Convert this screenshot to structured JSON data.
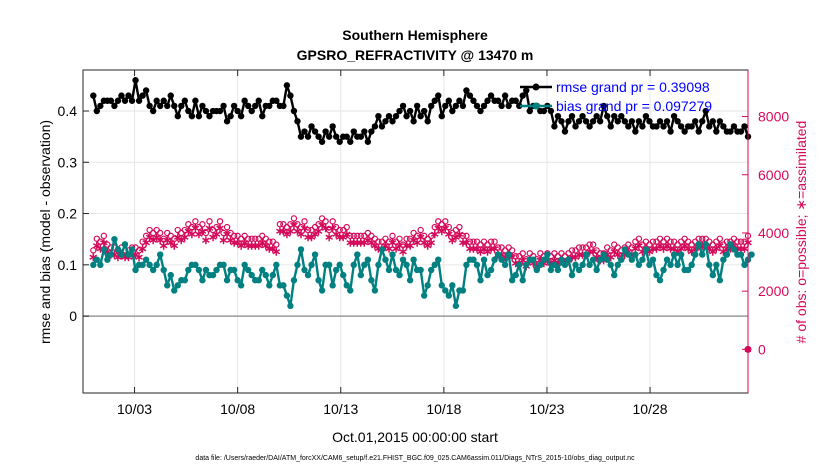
{
  "chart_data": {
    "type": "line",
    "title": "Southern Hemisphere",
    "subtitle": "GPSRO_REFRACTIVITY @ 13470 m",
    "xlabel": "Oct.01,2015 00:00:00 start",
    "ylabel": "rmse and bias (model - observation)",
    "ylabel_right": "# of obs: o=possible; ∗=assimilated",
    "footnote": "data file: /Users/raeder/DAI/ATM_forcXX/CAM6_setup/f.e21.FHIST_BGC.f09_025.CAM6assim.011/Diags_NTrS_2015-10/obs_diag_output.nc",
    "xlim": [
      0.5,
      32.75
    ],
    "ylim": [
      -0.15,
      0.48
    ],
    "ylim_right": [
      -1500,
      9600
    ],
    "x_ticks": [
      3,
      8,
      13,
      18,
      23,
      28
    ],
    "x_tick_labels": [
      "10/03",
      "10/08",
      "10/13",
      "10/18",
      "10/23",
      "10/28"
    ],
    "y_ticks": [
      0,
      0.1,
      0.2,
      0.3,
      0.4
    ],
    "y_tick_labels": [
      "0",
      "0.1",
      "0.2",
      "0.3",
      "0.4"
    ],
    "y_ticks_right": [
      0,
      2000,
      4000,
      6000,
      8000
    ],
    "y_tick_labels_right": [
      "0",
      "2000",
      "4000",
      "6000",
      "8000"
    ],
    "grid": true,
    "legend": [
      "rmse grand pr = 0.39098",
      "bias grand pr = 0.097279"
    ],
    "colors": {
      "rmse": "#000000",
      "bias": "#008080",
      "obs": "#d40a5a",
      "zero": "#9a9a9a"
    },
    "series": [
      {
        "name": "rmse",
        "values": [
          0.43,
          0.4,
          0.41,
          0.42,
          0.42,
          0.42,
          0.41,
          0.42,
          0.43,
          0.42,
          0.43,
          0.42,
          0.46,
          0.42,
          0.43,
          0.44,
          0.41,
          0.4,
          0.42,
          0.41,
          0.42,
          0.41,
          0.43,
          0.41,
          0.39,
          0.41,
          0.42,
          0.4,
          0.39,
          0.42,
          0.39,
          0.41,
          0.4,
          0.39,
          0.4,
          0.4,
          0.4,
          0.41,
          0.38,
          0.39,
          0.41,
          0.4,
          0.39,
          0.42,
          0.41,
          0.4,
          0.41,
          0.42,
          0.39,
          0.41,
          0.41,
          0.42,
          0.42,
          0.41,
          0.41,
          0.45,
          0.43,
          0.4,
          0.38,
          0.35,
          0.36,
          0.35,
          0.37,
          0.36,
          0.35,
          0.34,
          0.36,
          0.35,
          0.37,
          0.35,
          0.34,
          0.35,
          0.35,
          0.34,
          0.36,
          0.35,
          0.35,
          0.36,
          0.34,
          0.36,
          0.37,
          0.39,
          0.37,
          0.38,
          0.39,
          0.38,
          0.39,
          0.4,
          0.41,
          0.39,
          0.4,
          0.38,
          0.41,
          0.39,
          0.4,
          0.38,
          0.41,
          0.42,
          0.43,
          0.39,
          0.41,
          0.42,
          0.4,
          0.41,
          0.42,
          0.41,
          0.44,
          0.43,
          0.42,
          0.41,
          0.4,
          0.41,
          0.42,
          0.43,
          0.42,
          0.42,
          0.41,
          0.43,
          0.41,
          0.42,
          0.42,
          0.41,
          0.43,
          0.44,
          0.4,
          0.41,
          0.41,
          0.4,
          0.4,
          0.41,
          0.4,
          0.37,
          0.39,
          0.38,
          0.36,
          0.38,
          0.39,
          0.37,
          0.38,
          0.39,
          0.38,
          0.37,
          0.38,
          0.39,
          0.38,
          0.41,
          0.39,
          0.37,
          0.39,
          0.38,
          0.39,
          0.38,
          0.37,
          0.38,
          0.36,
          0.38,
          0.37,
          0.39,
          0.38,
          0.37,
          0.37,
          0.38,
          0.37,
          0.38,
          0.36,
          0.39,
          0.38,
          0.37,
          0.36,
          0.37,
          0.37,
          0.38,
          0.36,
          0.38,
          0.4,
          0.37,
          0.38,
          0.36,
          0.38,
          0.37,
          0.36,
          0.36,
          0.37,
          0.36,
          0.36,
          0.37,
          0.35
        ]
      },
      {
        "name": "bias",
        "values": [
          0.1,
          0.11,
          0.1,
          0.13,
          0.11,
          0.12,
          0.15,
          0.13,
          0.12,
          0.14,
          0.12,
          0.13,
          0.09,
          0.1,
          0.1,
          0.11,
          0.1,
          0.09,
          0.1,
          0.12,
          0.09,
          0.06,
          0.08,
          0.05,
          0.06,
          0.07,
          0.07,
          0.09,
          0.1,
          0.1,
          0.09,
          0.07,
          0.09,
          0.08,
          0.08,
          0.09,
          0.1,
          0.1,
          0.07,
          0.09,
          0.09,
          0.07,
          0.06,
          0.1,
          0.09,
          0.08,
          0.07,
          0.07,
          0.09,
          0.08,
          0.06,
          0.08,
          0.1,
          0.06,
          0.06,
          0.04,
          0.02,
          0.07,
          0.1,
          0.13,
          0.09,
          0.08,
          0.1,
          0.12,
          0.07,
          0.05,
          0.1,
          0.1,
          0.06,
          0.09,
          0.1,
          0.08,
          0.06,
          0.05,
          0.1,
          0.12,
          0.08,
          0.1,
          0.11,
          0.07,
          0.05,
          0.1,
          0.13,
          0.11,
          0.09,
          0.12,
          0.09,
          0.08,
          0.11,
          0.1,
          0.07,
          0.11,
          0.09,
          0.09,
          0.04,
          0.06,
          0.09,
          0.1,
          0.11,
          0.06,
          0.05,
          0.04,
          0.06,
          0.02,
          0.05,
          0.05,
          0.1,
          0.11,
          0.11,
          0.1,
          0.07,
          0.11,
          0.08,
          0.09,
          0.11,
          0.12,
          0.11,
          0.1,
          0.12,
          0.07,
          0.08,
          0.1,
          0.07,
          0.1,
          0.11,
          0.11,
          0.09,
          0.1,
          0.11,
          0.12,
          0.09,
          0.1,
          0.09,
          0.11,
          0.1,
          0.11,
          0.08,
          0.1,
          0.09,
          0.1,
          0.12,
          0.1,
          0.11,
          0.09,
          0.11,
          0.12,
          0.11,
          0.1,
          0.08,
          0.1,
          0.11,
          0.13,
          0.12,
          0.11,
          0.12,
          0.1,
          0.11,
          0.13,
          0.1,
          0.11,
          0.08,
          0.07,
          0.09,
          0.11,
          0.1,
          0.12,
          0.1,
          0.12,
          0.09,
          0.09,
          0.1,
          0.12,
          0.14,
          0.12,
          0.14,
          0.1,
          0.08,
          0.1,
          0.07,
          0.11,
          0.12,
          0.14,
          0.13,
          0.12,
          0.12,
          0.1,
          0.11,
          0.12
        ]
      },
      {
        "name": "obs_possible",
        "values": [
          3400,
          3800,
          3700,
          3900,
          3600,
          3500,
          3500,
          3400,
          3500,
          3400,
          3400,
          3500,
          3500,
          3400,
          3700,
          3900,
          4100,
          4000,
          4100,
          4000,
          3800,
          4000,
          3900,
          3800,
          4100,
          4000,
          4100,
          4300,
          4200,
          4400,
          4200,
          4300,
          4000,
          4400,
          4100,
          4200,
          4400,
          4000,
          4200,
          4000,
          3900,
          3900,
          3800,
          3900,
          3800,
          3800,
          3800,
          3800,
          3900,
          3800,
          3700,
          3700,
          3600,
          4300,
          4300,
          4200,
          4300,
          4500,
          4300,
          4200,
          4400,
          4100,
          4100,
          4200,
          4300,
          4500,
          4400,
          4100,
          4400,
          4200,
          4100,
          4100,
          4200,
          3900,
          3900,
          3900,
          3900,
          3900,
          4000,
          3900,
          3800,
          3700,
          3700,
          3800,
          3700,
          3900,
          3700,
          3800,
          3600,
          3800,
          3800,
          4000,
          3900,
          4100,
          3900,
          3800,
          3900,
          4200,
          4400,
          4300,
          4400,
          4200,
          4000,
          4100,
          4200,
          3900,
          3900,
          3700,
          3700,
          3700,
          3600,
          3700,
          3600,
          3700,
          3700,
          3500,
          3500,
          3400,
          3500,
          3400,
          3200,
          3200,
          3300,
          3100,
          3300,
          3200,
          3100,
          3300,
          3200,
          3300,
          3200,
          3300,
          3200,
          3300,
          3200,
          3300,
          3400,
          3400,
          3500,
          3500,
          3500,
          3600,
          3600,
          3400,
          3300,
          3300,
          3500,
          3400,
          3600,
          3500,
          3400,
          3500,
          3600,
          3500,
          3700,
          3800,
          3600,
          3700,
          3600,
          3700,
          3700,
          3800,
          3700,
          3800,
          3700,
          3700,
          3600,
          3700,
          3800,
          3700,
          3600,
          3700,
          3800,
          3800,
          3800,
          3700,
          3600,
          3700,
          3800,
          3600,
          3700,
          3700,
          3800,
          3700,
          3700,
          3700,
          3900,
          3800
        ]
      },
      {
        "name": "obs_assimilated",
        "values": [
          3200,
          3600,
          3500,
          3700,
          3400,
          3300,
          3300,
          3200,
          3300,
          3200,
          3200,
          3300,
          3300,
          3200,
          3500,
          3700,
          3900,
          3800,
          3900,
          3800,
          3600,
          3800,
          3700,
          3600,
          3900,
          3800,
          3900,
          4100,
          4000,
          4200,
          4000,
          4100,
          3800,
          4200,
          3900,
          4000,
          4200,
          3800,
          4000,
          3800,
          3700,
          3700,
          3600,
          3700,
          3600,
          3600,
          3600,
          3600,
          3700,
          3600,
          3500,
          3500,
          3400,
          4100,
          4100,
          4000,
          4100,
          4300,
          4100,
          4000,
          4200,
          3900,
          3900,
          4000,
          4100,
          4300,
          4200,
          3900,
          4200,
          4000,
          3900,
          3900,
          4000,
          3700,
          3700,
          3700,
          3700,
          3700,
          3800,
          3700,
          3600,
          3500,
          3500,
          3600,
          3500,
          3700,
          3500,
          3600,
          3400,
          3600,
          3600,
          3800,
          3700,
          3900,
          3700,
          3600,
          3700,
          4000,
          4200,
          4100,
          4200,
          4000,
          3800,
          3900,
          4000,
          3700,
          3700,
          3500,
          3500,
          3500,
          3400,
          3500,
          3400,
          3500,
          3500,
          3300,
          3300,
          3200,
          3300,
          3200,
          3000,
          3000,
          3100,
          2900,
          3100,
          3000,
          2900,
          3100,
          3000,
          3100,
          3000,
          3100,
          3000,
          3100,
          3000,
          3100,
          3200,
          3200,
          3300,
          3300,
          3300,
          3400,
          3400,
          3200,
          3100,
          3100,
          3300,
          3200,
          3400,
          3300,
          3200,
          3300,
          3400,
          3300,
          3500,
          3600,
          3400,
          3500,
          3400,
          3500,
          3500,
          3600,
          3500,
          3600,
          3500,
          3500,
          3400,
          3500,
          3600,
          3500,
          3400,
          3500,
          3600,
          3600,
          3600,
          3500,
          3400,
          3500,
          3600,
          3400,
          3500,
          3500,
          3600,
          3500,
          3500,
          3500,
          3700,
          3600
        ]
      }
    ]
  }
}
